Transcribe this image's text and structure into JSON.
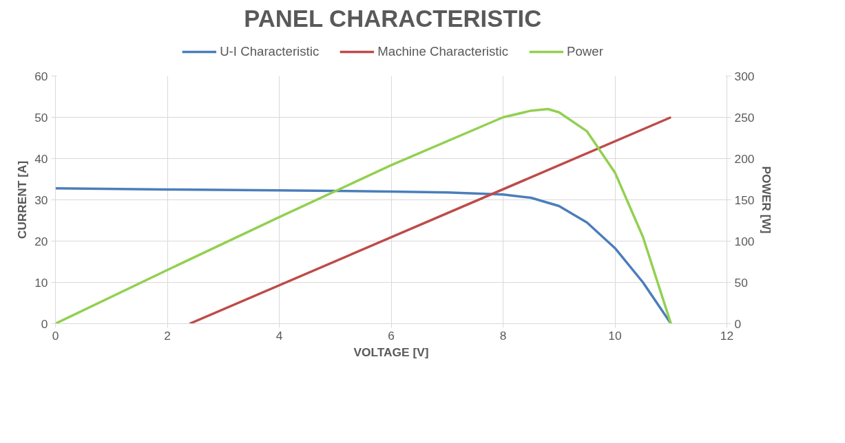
{
  "chart_data": {
    "type": "line",
    "title": "PANEL CHARACTERISTIC",
    "xlabel": "VOLTAGE [V]",
    "ylabel": "CURRENT [A]",
    "y2label": "POWER [W]",
    "xlim": [
      0,
      12
    ],
    "xticks": [
      0,
      2,
      4,
      6,
      8,
      10,
      12
    ],
    "ylim": [
      0,
      60
    ],
    "yticks": [
      0,
      10,
      20,
      30,
      40,
      50,
      60
    ],
    "y2lim": [
      0,
      300
    ],
    "y2ticks": [
      0,
      50,
      100,
      150,
      200,
      250,
      300
    ],
    "grid": true,
    "legend": "top",
    "marker": "none",
    "line_style": "solid",
    "series": [
      {
        "name": "U-I Characteristic",
        "color": "#4a7ebb",
        "x": [
          0,
          2,
          4,
          6,
          7,
          8,
          8.5,
          9,
          9.5,
          10,
          10.5,
          11
        ],
        "values": [
          32.8,
          32.5,
          32.3,
          32.0,
          31.8,
          31.3,
          30.5,
          28.5,
          24.5,
          18.3,
          10,
          0
        ]
      },
      {
        "name": "Machine Characteristic",
        "color": "#be4b48",
        "x": [
          2.4,
          11
        ],
        "values": [
          0,
          50
        ]
      },
      {
        "name": "Power",
        "color": "#92d050",
        "axis": "y2",
        "x": [
          0,
          2,
          4,
          6,
          8,
          8.5,
          8.8,
          9,
          9.5,
          10,
          10.5,
          11
        ],
        "values": [
          0,
          65,
          129,
          192,
          250,
          258,
          260,
          256,
          233,
          183,
          105,
          0
        ]
      }
    ]
  }
}
